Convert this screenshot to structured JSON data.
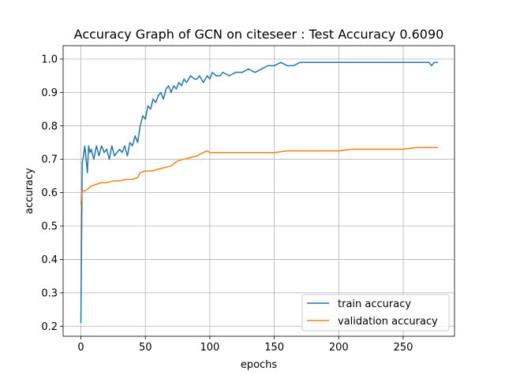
{
  "chart_data": {
    "type": "line",
    "title": "Accuracy Graph of GCN on citeseer : Test Accuracy 0.6090",
    "xlabel": "epochs",
    "ylabel": "accuracy",
    "xlim": [
      -13.8,
      289.8
    ],
    "ylim": [
      0.17,
      1.04
    ],
    "xticks": [
      0,
      50,
      100,
      150,
      200,
      250
    ],
    "yticks": [
      0.2,
      0.3,
      0.4,
      0.5,
      0.6,
      0.7,
      0.8,
      0.9,
      1.0
    ],
    "ytick_labels": [
      "0.2",
      "0.3",
      "0.4",
      "0.5",
      "0.6",
      "0.7",
      "0.8",
      "0.9",
      "1.0"
    ],
    "grid": true,
    "legend_position": "lower-right",
    "series": [
      {
        "name": "train accuracy",
        "color": "#1f77b4",
        "points": [
          [
            0,
            0.21
          ],
          [
            1,
            0.69
          ],
          [
            2,
            0.71
          ],
          [
            3,
            0.74
          ],
          [
            4,
            0.7
          ],
          [
            5,
            0.66
          ],
          [
            6,
            0.74
          ],
          [
            7,
            0.72
          ],
          [
            8,
            0.73
          ],
          [
            10,
            0.7
          ],
          [
            12,
            0.74
          ],
          [
            14,
            0.71
          ],
          [
            16,
            0.74
          ],
          [
            18,
            0.72
          ],
          [
            20,
            0.73
          ],
          [
            22,
            0.7
          ],
          [
            24,
            0.74
          ],
          [
            26,
            0.71
          ],
          [
            28,
            0.72
          ],
          [
            30,
            0.73
          ],
          [
            32,
            0.72
          ],
          [
            34,
            0.74
          ],
          [
            36,
            0.71
          ],
          [
            38,
            0.75
          ],
          [
            40,
            0.74
          ],
          [
            42,
            0.77
          ],
          [
            44,
            0.75
          ],
          [
            46,
            0.8
          ],
          [
            48,
            0.83
          ],
          [
            50,
            0.82
          ],
          [
            52,
            0.86
          ],
          [
            54,
            0.85
          ],
          [
            56,
            0.88
          ],
          [
            58,
            0.87
          ],
          [
            60,
            0.89
          ],
          [
            62,
            0.9
          ],
          [
            64,
            0.88
          ],
          [
            66,
            0.91
          ],
          [
            68,
            0.92
          ],
          [
            70,
            0.9
          ],
          [
            72,
            0.92
          ],
          [
            74,
            0.91
          ],
          [
            76,
            0.93
          ],
          [
            78,
            0.92
          ],
          [
            80,
            0.94
          ],
          [
            82,
            0.93
          ],
          [
            85,
            0.95
          ],
          [
            88,
            0.94
          ],
          [
            90,
            0.94
          ],
          [
            92,
            0.95
          ],
          [
            95,
            0.93
          ],
          [
            98,
            0.95
          ],
          [
            100,
            0.94
          ],
          [
            102,
            0.96
          ],
          [
            105,
            0.95
          ],
          [
            108,
            0.95
          ],
          [
            110,
            0.96
          ],
          [
            115,
            0.95
          ],
          [
            120,
            0.96
          ],
          [
            125,
            0.96
          ],
          [
            130,
            0.97
          ],
          [
            135,
            0.96
          ],
          [
            140,
            0.97
          ],
          [
            145,
            0.98
          ],
          [
            150,
            0.98
          ],
          [
            155,
            0.99
          ],
          [
            160,
            0.98
          ],
          [
            165,
            0.98
          ],
          [
            170,
            0.99
          ],
          [
            175,
            0.99
          ],
          [
            180,
            0.99
          ],
          [
            185,
            0.99
          ],
          [
            190,
            0.99
          ],
          [
            195,
            0.99
          ],
          [
            200,
            0.99
          ],
          [
            210,
            0.99
          ],
          [
            220,
            0.99
          ],
          [
            230,
            0.99
          ],
          [
            240,
            0.99
          ],
          [
            250,
            0.99
          ],
          [
            260,
            0.99
          ],
          [
            265,
            0.99
          ],
          [
            270,
            0.99
          ],
          [
            272,
            0.98
          ],
          [
            274,
            0.99
          ],
          [
            277,
            0.99
          ]
        ]
      },
      {
        "name": "validation accuracy",
        "color": "#ff7f0e",
        "points": [
          [
            0,
            0.565
          ],
          [
            1,
            0.605
          ],
          [
            3,
            0.605
          ],
          [
            5,
            0.61
          ],
          [
            8,
            0.62
          ],
          [
            12,
            0.625
          ],
          [
            16,
            0.63
          ],
          [
            20,
            0.63
          ],
          [
            25,
            0.635
          ],
          [
            30,
            0.635
          ],
          [
            35,
            0.64
          ],
          [
            40,
            0.64
          ],
          [
            44,
            0.645
          ],
          [
            46,
            0.66
          ],
          [
            50,
            0.665
          ],
          [
            55,
            0.665
          ],
          [
            60,
            0.67
          ],
          [
            65,
            0.675
          ],
          [
            70,
            0.68
          ],
          [
            75,
            0.695
          ],
          [
            80,
            0.7
          ],
          [
            85,
            0.705
          ],
          [
            90,
            0.71
          ],
          [
            95,
            0.72
          ],
          [
            98,
            0.725
          ],
          [
            100,
            0.72
          ],
          [
            110,
            0.72
          ],
          [
            120,
            0.72
          ],
          [
            130,
            0.72
          ],
          [
            140,
            0.72
          ],
          [
            150,
            0.72
          ],
          [
            160,
            0.725
          ],
          [
            170,
            0.725
          ],
          [
            180,
            0.725
          ],
          [
            190,
            0.725
          ],
          [
            200,
            0.725
          ],
          [
            210,
            0.73
          ],
          [
            220,
            0.73
          ],
          [
            230,
            0.73
          ],
          [
            240,
            0.73
          ],
          [
            250,
            0.73
          ],
          [
            260,
            0.735
          ],
          [
            270,
            0.735
          ],
          [
            277,
            0.735
          ]
        ]
      }
    ]
  }
}
